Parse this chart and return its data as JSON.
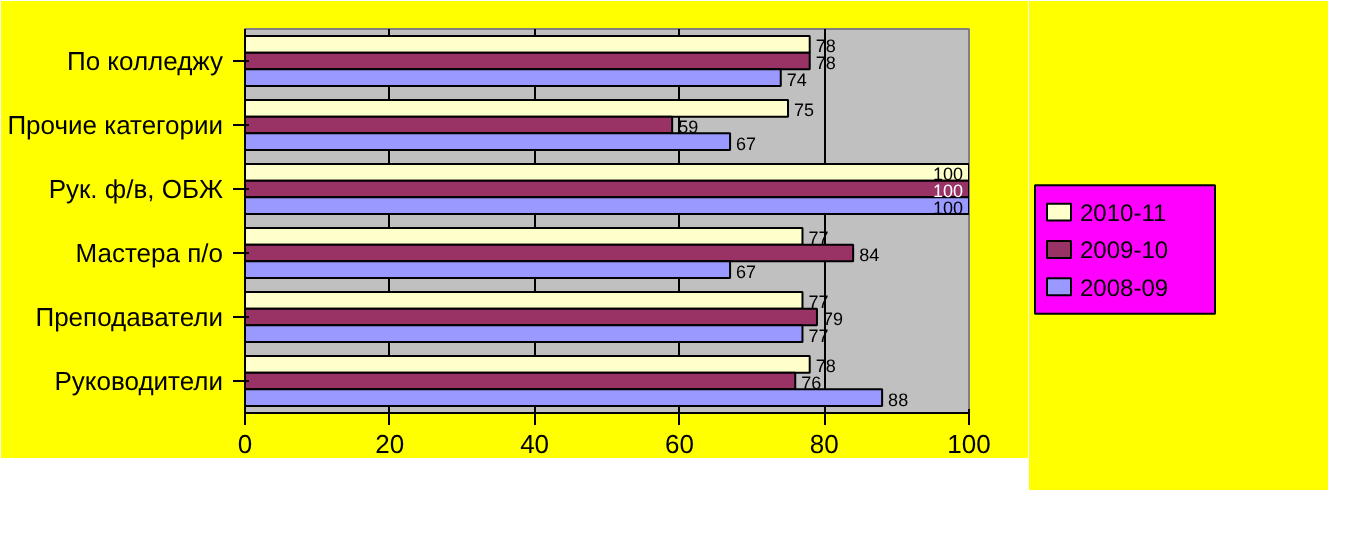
{
  "chart_data": {
    "type": "bar",
    "orientation": "horizontal",
    "categories": [
      "По колледжу",
      "Прочие категории",
      "Рук. ф/в, ОБЖ",
      "Мастера п/о",
      "Преподаватели",
      "Руководители"
    ],
    "series": [
      {
        "name": "2010-11",
        "color": "#ffffcc",
        "values": [
          78,
          75,
          100,
          77,
          77,
          78
        ]
      },
      {
        "name": "2009-10",
        "color": "#993366",
        "values": [
          78,
          59,
          100,
          84,
          79,
          76
        ]
      },
      {
        "name": "2008-09",
        "color": "#9999ff",
        "values": [
          74,
          67,
          100,
          67,
          77,
          88
        ]
      }
    ],
    "xlim": [
      0,
      100
    ],
    "xticks": [
      0,
      20,
      40,
      60,
      80,
      100
    ],
    "grid": "x",
    "legend": "right",
    "data_labels": true
  }
}
